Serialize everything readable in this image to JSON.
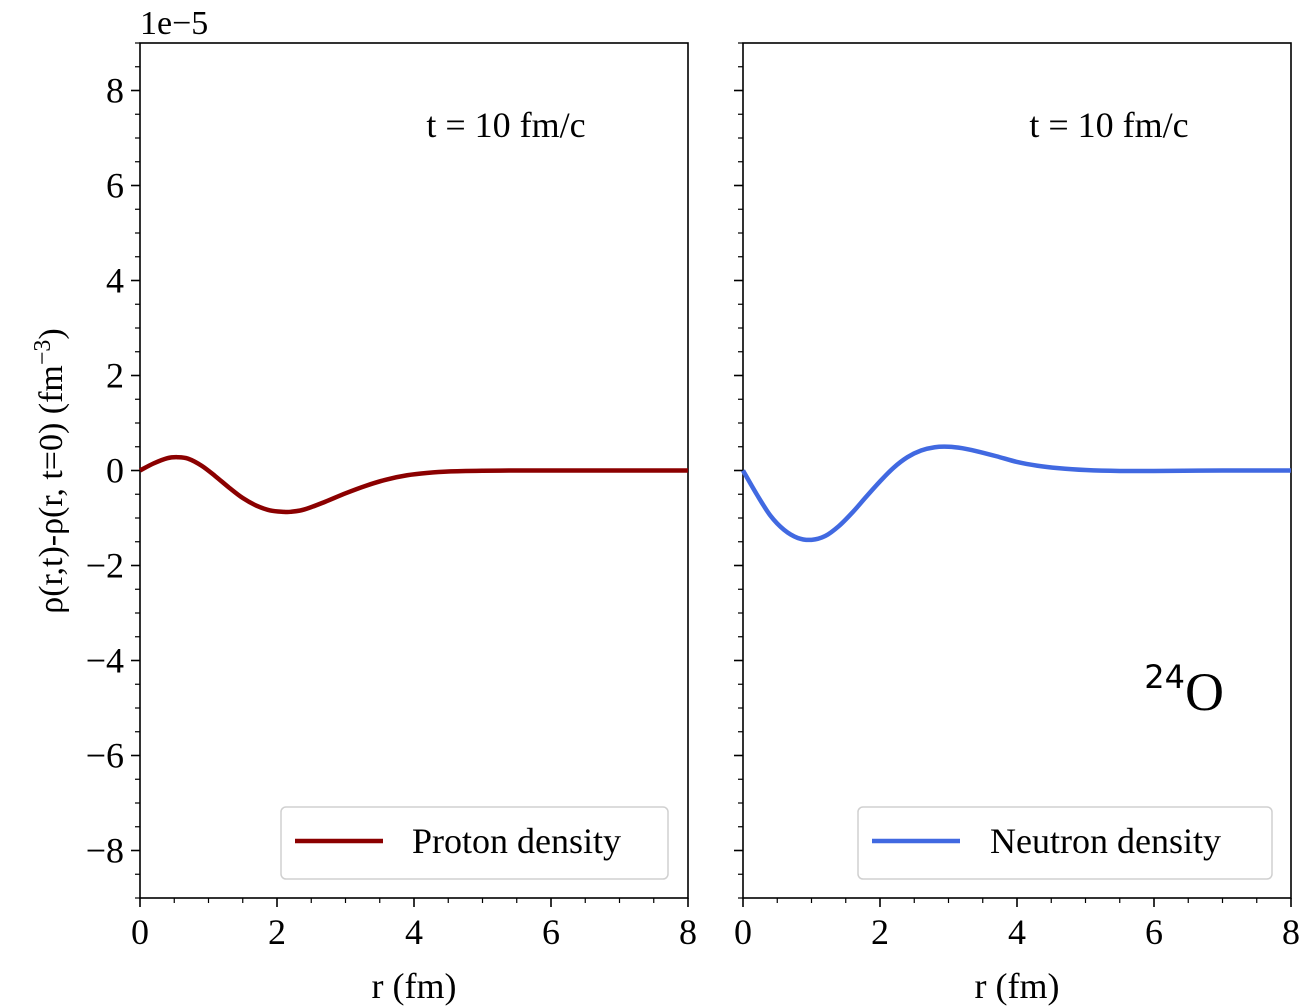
{
  "chart_data": {
    "type": "line",
    "shared": {
      "ylabel": "ρ(r,t)-ρ(r, t=0) (fm⁻³)",
      "ylabel_main": "ρ(r,t)-ρ(r, t=0) (fm",
      "ylabel_exp": "−3",
      "ylabel_close": ")",
      "offset_text": "1e−5",
      "ylim": [
        -9,
        9
      ],
      "yticks": [
        -8,
        -6,
        -4,
        -2,
        0,
        2,
        4,
        6,
        8
      ],
      "ytick_labels": [
        "−8",
        "−6",
        "−4",
        "−2",
        "0",
        "2",
        "4",
        "6",
        "8"
      ],
      "nucleus_mass": "24",
      "nucleus_symbol": "O"
    },
    "panels": [
      {
        "annotation": "t = 10 fm/c",
        "xlabel": "r (fm)",
        "xlim": [
          0,
          8
        ],
        "xticks": [
          0,
          2,
          4,
          6,
          8
        ],
        "xtick_labels": [
          "0",
          "2",
          "4",
          "6",
          "8"
        ],
        "legend_position": "lower-right",
        "series": [
          {
            "name": "Proton density",
            "color": "#8b0000",
            "x": [
              0,
              0.2,
              0.4,
              0.55,
              0.7,
              0.9,
              1.1,
              1.3,
              1.5,
              1.7,
              1.9,
              2.1,
              2.2,
              2.4,
              2.7,
              3.0,
              3.3,
              3.6,
              3.9,
              4.2,
              4.5,
              5.0,
              5.5,
              6.0,
              7.0,
              8.0
            ],
            "values": [
              0,
              0.15,
              0.26,
              0.28,
              0.25,
              0.1,
              -0.12,
              -0.36,
              -0.58,
              -0.74,
              -0.84,
              -0.87,
              -0.87,
              -0.82,
              -0.66,
              -0.48,
              -0.32,
              -0.19,
              -0.1,
              -0.05,
              -0.02,
              -0.005,
              0,
              0,
              0,
              0
            ]
          }
        ]
      },
      {
        "annotation": "t = 10 fm/c",
        "xlabel": "r (fm)",
        "xlim": [
          0,
          8
        ],
        "xticks": [
          0,
          2,
          4,
          6,
          8
        ],
        "xtick_labels": [
          "0",
          "2",
          "4",
          "6",
          "8"
        ],
        "legend_position": "lower-right",
        "series": [
          {
            "name": "Neutron density",
            "color": "#4169e1",
            "x": [
              0,
              0.2,
              0.4,
              0.6,
              0.8,
              1.0,
              1.2,
              1.4,
              1.6,
              1.8,
              2.0,
              2.2,
              2.4,
              2.6,
              2.8,
              3.0,
              3.2,
              3.4,
              3.7,
              4.0,
              4.3,
              4.6,
              5.0,
              5.5,
              6.0,
              7.0,
              8.0
            ],
            "values": [
              0,
              -0.5,
              -0.95,
              -1.25,
              -1.42,
              -1.46,
              -1.38,
              -1.17,
              -0.88,
              -0.55,
              -0.23,
              0.06,
              0.28,
              0.42,
              0.49,
              0.5,
              0.47,
              0.41,
              0.3,
              0.18,
              0.1,
              0.05,
              0.01,
              -0.01,
              -0.01,
              0,
              0
            ]
          }
        ]
      }
    ]
  }
}
